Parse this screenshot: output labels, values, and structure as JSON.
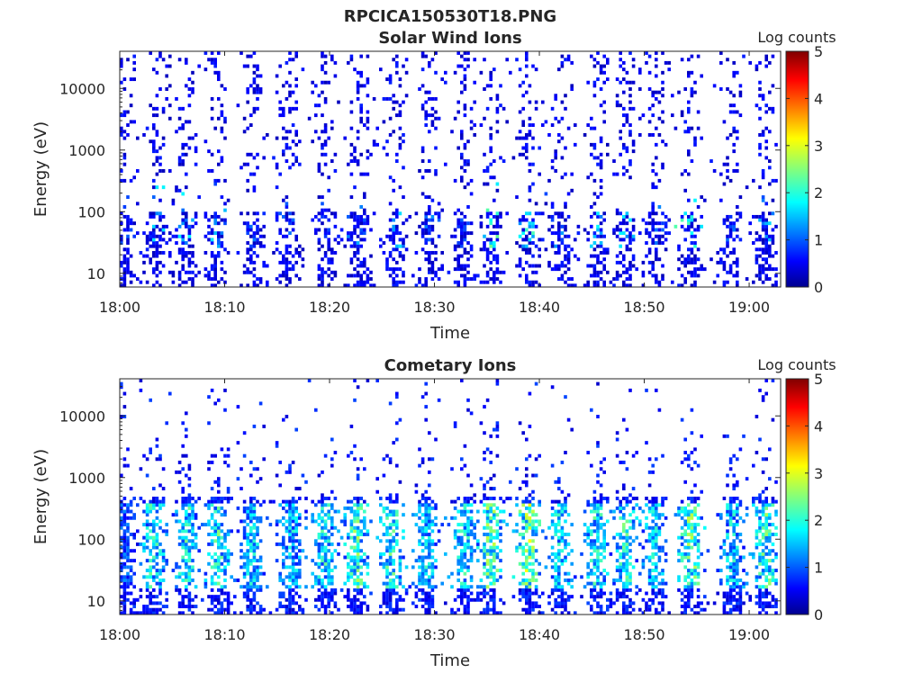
{
  "figure": {
    "title": "RPCICA150530T18.PNG"
  },
  "colormap": {
    "name": "jet",
    "stops": [
      "#00008f",
      "#0000ff",
      "#00ffff",
      "#ffff00",
      "#ff0000",
      "#800000"
    ]
  },
  "chart_data": [
    {
      "type": "heatmap",
      "title": "Solar Wind Ions",
      "xlabel": "Time",
      "ylabel": "Energy (eV)",
      "xlim": [
        "18:00",
        "19:03"
      ],
      "ylim": [
        6,
        40000
      ],
      "y_scale": "log",
      "x_ticks": [
        "18:00",
        "18:10",
        "18:20",
        "18:30",
        "18:40",
        "18:50",
        "19:00"
      ],
      "y_ticks": [
        {
          "value": 10,
          "label": "10"
        },
        {
          "value": 100,
          "label": "100"
        },
        {
          "value": 1000,
          "label": "1000"
        },
        {
          "value": 10000,
          "label": "10000"
        }
      ],
      "colorbar": {
        "label": "Log counts",
        "range": [
          0,
          5
        ],
        "ticks": [
          "0",
          "1",
          "2",
          "3",
          "4",
          "5"
        ]
      },
      "bursts_minutes": [
        0.5,
        3.6,
        6.3,
        9.2,
        12.8,
        15.9,
        19.6,
        22.8,
        26.3,
        29.6,
        32.8,
        35.6,
        39.0,
        42.2,
        45.6,
        48.3,
        51.1,
        54.4,
        58.2,
        61.5
      ],
      "burst_peak_log_counts": [
        1.0,
        1.9,
        1.8,
        1.7,
        1.2,
        1.1,
        1.0,
        1.6,
        1.9,
        1.3,
        1.1,
        2.4,
        2.2,
        1.5,
        1.9,
        1.9,
        1.3,
        2.4,
        1.1,
        1.6
      ],
      "grid": false,
      "legend": "colorbar-right"
    },
    {
      "type": "heatmap",
      "title": "Cometary Ions",
      "xlabel": "Time",
      "ylabel": "Energy (eV)",
      "xlim": [
        "18:00",
        "19:03"
      ],
      "ylim": [
        6,
        40000
      ],
      "y_scale": "log",
      "x_ticks": [
        "18:00",
        "18:10",
        "18:20",
        "18:30",
        "18:40",
        "18:50",
        "19:00"
      ],
      "y_ticks": [
        {
          "value": 10,
          "label": "10"
        },
        {
          "value": 100,
          "label": "100"
        },
        {
          "value": 1000,
          "label": "1000"
        },
        {
          "value": 10000,
          "label": "10000"
        }
      ],
      "colorbar": {
        "label": "Log counts",
        "range": [
          0,
          5
        ],
        "ticks": [
          "0",
          "1",
          "2",
          "3",
          "4",
          "5"
        ]
      },
      "bursts_minutes": [
        0.5,
        3.3,
        6.3,
        9.4,
        12.6,
        16.4,
        19.6,
        22.6,
        25.9,
        29.3,
        32.8,
        35.4,
        39.0,
        42.0,
        45.5,
        48.3,
        51.0,
        54.4,
        58.4,
        61.6
      ],
      "burst_peak_log_counts": [
        1.3,
        2.5,
        2.5,
        2.6,
        2.2,
        2.1,
        2.4,
        2.8,
        2.7,
        2.2,
        2.4,
        3.0,
        3.3,
        2.3,
        2.5,
        2.6,
        2.2,
        3.0,
        2.2,
        2.8
      ],
      "grid": false,
      "legend": "colorbar-right"
    }
  ]
}
